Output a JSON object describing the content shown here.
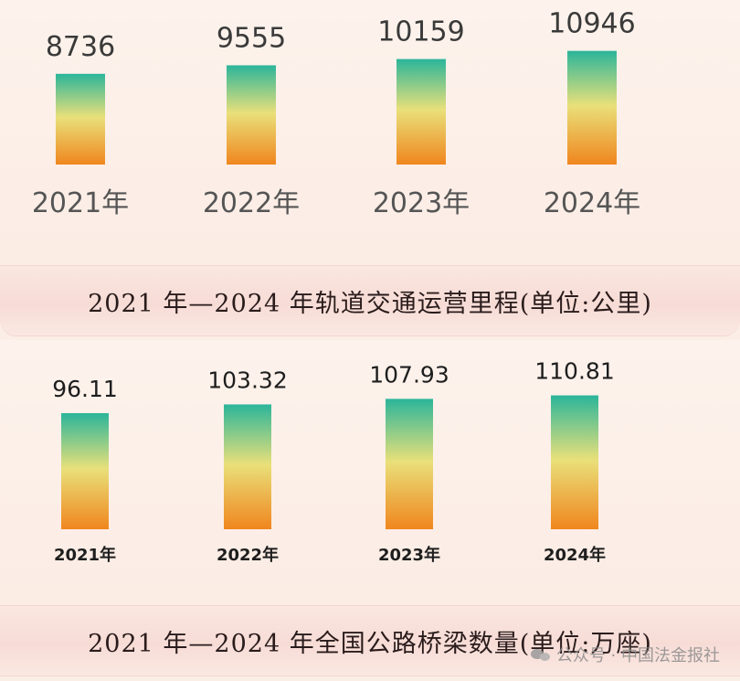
{
  "chart_data": [
    {
      "type": "bar",
      "title": "2021 年—2024 年轨道交通运营里程(单位:公里)",
      "categories": [
        "2021年",
        "2022年",
        "2023年",
        "2024年"
      ],
      "values": [
        8736,
        9555,
        10159,
        10946
      ],
      "value_labels": [
        "8736",
        "9555",
        "10159",
        "10946"
      ],
      "ylim": [
        0,
        12500
      ],
      "grid": false,
      "colors": {
        "bar_top": "#2bb59a",
        "bar_mid": "#e9e07a",
        "bar_bottom": "#f0861e",
        "text": "#3a3a3a"
      }
    },
    {
      "type": "bar",
      "title": "2021 年—2024 年全国公路桥梁数量(单位:万座)",
      "categories": [
        "2021年",
        "2022年",
        "2023年",
        "2024年"
      ],
      "values": [
        96.11,
        103.32,
        107.93,
        110.81
      ],
      "value_labels": [
        "96.11",
        "103.32",
        "107.93",
        "110.81"
      ],
      "ylim": [
        0,
        115
      ],
      "grid": false,
      "colors": {
        "bar_top": "#2bb59a",
        "bar_mid": "#e9e07a",
        "bar_bottom": "#f0861e",
        "text": "#1e1e1e"
      }
    }
  ],
  "watermark": {
    "text": "公众号 · 中国法金报社",
    "icon": "wechat-icon"
  }
}
